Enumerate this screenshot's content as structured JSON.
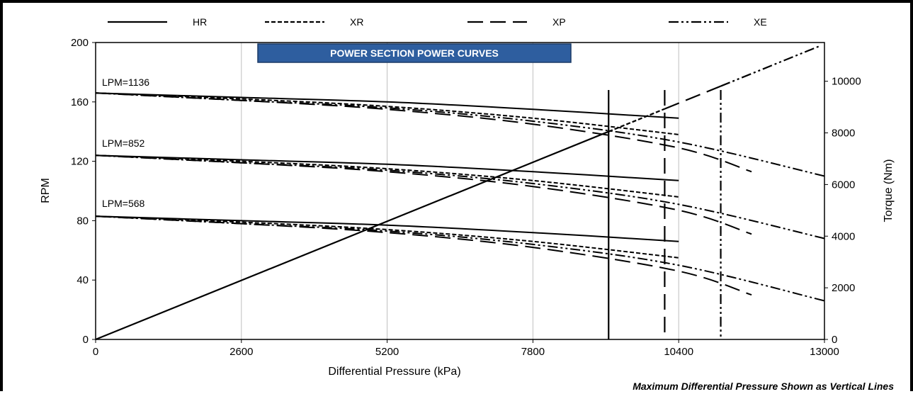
{
  "chart_data": {
    "type": "line",
    "title": "POWER SECTION POWER CURVES",
    "xlabel": "Differential Pressure (kPa)",
    "ylabel": "RPM",
    "y2label": "Torque (Nm)",
    "footnote": "Maximum Differential Pressure Shown as Vertical Lines",
    "xlim": [
      0,
      13000
    ],
    "ylim": [
      0,
      200
    ],
    "y2lim": [
      0,
      11500
    ],
    "x_ticks": [
      "0",
      "2600",
      "5200",
      "7800",
      "10400",
      "13000"
    ],
    "y_ticks": [
      "0",
      "40",
      "80",
      "120",
      "160",
      "200"
    ],
    "y2_ticks": [
      "0",
      "2000",
      "4000",
      "6000",
      "8000",
      "10000"
    ],
    "grid": "vertical",
    "legend": {
      "position": "top",
      "entries": [
        {
          "name": "HR",
          "style": "solid"
        },
        {
          "name": "XR",
          "style": "short-dash"
        },
        {
          "name": "XP",
          "style": "long-dash"
        },
        {
          "name": "XE",
          "style": "dash-dot-dot"
        }
      ]
    },
    "flow_labels": [
      "LPM=1136",
      "LPM=852",
      "LPM=568"
    ],
    "rpm_curves": [
      {
        "series": "HR",
        "flow": "LPM=1136",
        "x": [
          0,
          2600,
          5200,
          7800,
          10400
        ],
        "y": [
          166,
          163,
          160,
          155,
          149
        ]
      },
      {
        "series": "HR",
        "flow": "LPM=852",
        "x": [
          0,
          2600,
          5200,
          7800,
          10400
        ],
        "y": [
          124,
          121,
          118,
          113,
          107
        ]
      },
      {
        "series": "HR",
        "flow": "LPM=568",
        "x": [
          0,
          2600,
          5200,
          7800,
          10400
        ],
        "y": [
          83,
          80,
          77,
          72,
          66
        ]
      },
      {
        "series": "XR",
        "flow": "LPM=1136",
        "x": [
          0,
          2600,
          5200,
          7800,
          10400
        ],
        "y": [
          166,
          162,
          157,
          149,
          138
        ]
      },
      {
        "series": "XR",
        "flow": "LPM=852",
        "x": [
          0,
          2600,
          5200,
          7800,
          10400
        ],
        "y": [
          124,
          120,
          115,
          107,
          96
        ]
      },
      {
        "series": "XR",
        "flow": "LPM=568",
        "x": [
          0,
          2600,
          5200,
          7800,
          10400
        ],
        "y": [
          83,
          79,
          74,
          66,
          55
        ]
      },
      {
        "series": "XP",
        "flow": "LPM=1136",
        "x": [
          0,
          2600,
          5200,
          7800,
          10400,
          11700
        ],
        "y": [
          166,
          161,
          155,
          145,
          129,
          113
        ]
      },
      {
        "series": "XP",
        "flow": "LPM=852",
        "x": [
          0,
          2600,
          5200,
          7800,
          10400,
          11700
        ],
        "y": [
          124,
          119,
          113,
          103,
          87,
          71
        ]
      },
      {
        "series": "XP",
        "flow": "LPM=568",
        "x": [
          0,
          2600,
          5200,
          7800,
          10400,
          11700
        ],
        "y": [
          83,
          78,
          72,
          62,
          46,
          30
        ]
      },
      {
        "series": "XE",
        "flow": "LPM=1136",
        "x": [
          0,
          2600,
          5200,
          7800,
          10400,
          13000
        ],
        "y": [
          166,
          161,
          156,
          147,
          133,
          110
        ]
      },
      {
        "series": "XE",
        "flow": "LPM=852",
        "x": [
          0,
          2600,
          5200,
          7800,
          10400,
          13000
        ],
        "y": [
          124,
          119,
          114,
          105,
          91,
          68
        ]
      },
      {
        "series": "XE",
        "flow": "LPM=568",
        "x": [
          0,
          2600,
          5200,
          7800,
          10400,
          13000
        ],
        "y": [
          83,
          78,
          73,
          64,
          50,
          26
        ]
      }
    ],
    "torque_line": {
      "x": [
        0,
        9150,
        10150,
        11150,
        12900
      ],
      "y": [
        0,
        8050,
        8930,
        9810,
        11350
      ],
      "segments": [
        "HR",
        "XR",
        "XP",
        "XE"
      ]
    },
    "max_pressure_lines": [
      {
        "series": "HR",
        "x": 9150
      },
      {
        "series": "XP",
        "x": 10150
      },
      {
        "series": "XE",
        "x": 11150
      }
    ],
    "colors": {
      "line": "#000000",
      "grid": "#bfbfbf",
      "banner_fill": "#2e5e9f",
      "banner_border": "#1a3a66",
      "banner_text": "#ffffff"
    }
  }
}
